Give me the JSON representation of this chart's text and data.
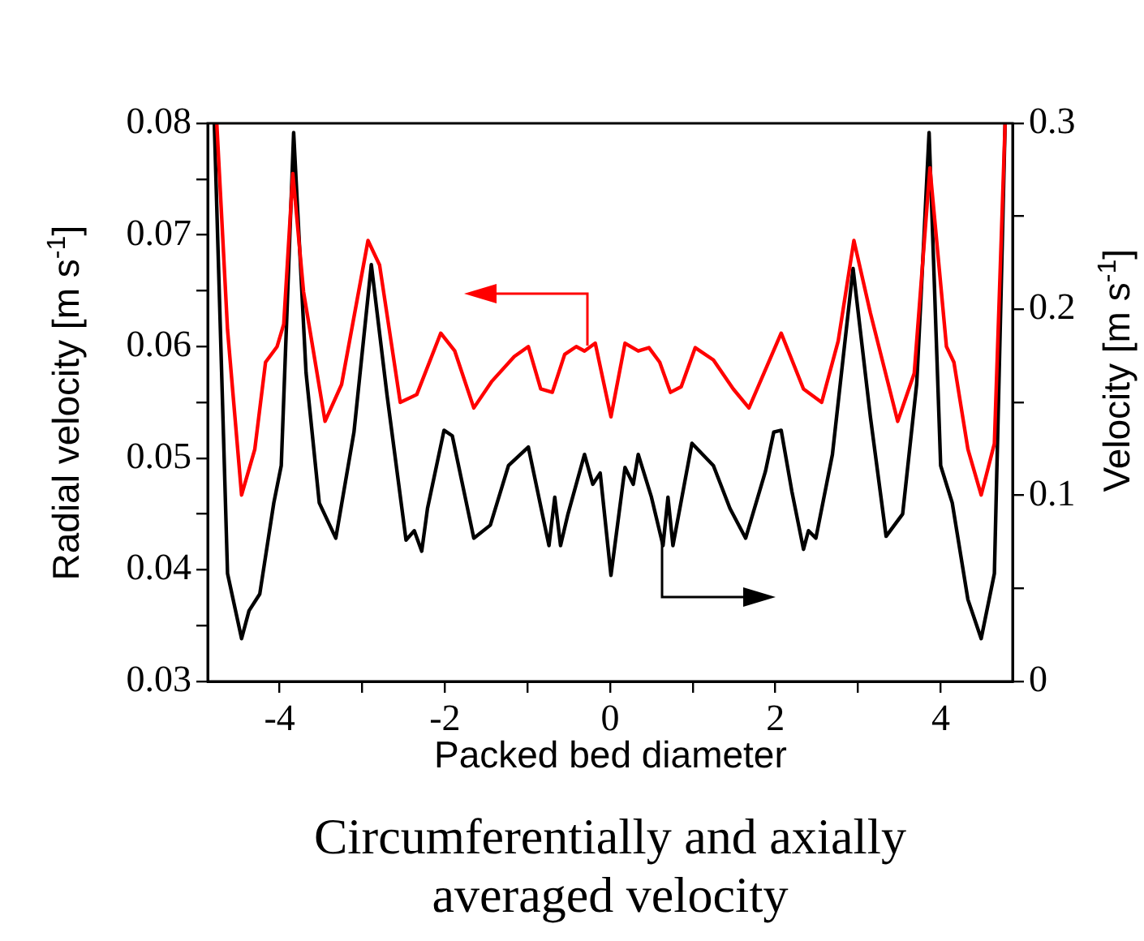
{
  "chart_data": {
    "type": "line",
    "xlabel": "Packed bed diameter",
    "ylabel": "Radial velocity [m s$^{-1}$]",
    "y2label": "Velocity [m s$^{-1}$]",
    "annotations": [
      "Circumferentially and axially averaged velocity"
    ],
    "xlim": [
      -4.87,
      4.87
    ],
    "xticks": [
      -4,
      {
        "value": -3,
        "label": null
      },
      -2,
      {
        "value": -1,
        "label": null
      },
      0,
      {
        "value": 1,
        "label": null
      },
      2,
      {
        "value": 3,
        "label": null
      },
      4
    ],
    "ylim": [
      0.03,
      0.08
    ],
    "yticks": [
      0.03,
      {
        "value": 0.035,
        "label": null
      },
      0.04,
      {
        "value": 0.045,
        "label": null
      },
      0.05,
      {
        "value": 0.055,
        "label": null
      },
      0.06,
      {
        "value": 0.065,
        "label": null
      },
      0.07,
      {
        "value": 0.075,
        "label": null
      },
      0.08
    ],
    "y2lim": [
      0,
      0.3
    ],
    "y2ticks": [
      0,
      {
        "value": 0.05,
        "label": null
      },
      0.1,
      {
        "value": 0.15,
        "label": null
      },
      0.2,
      {
        "value": 0.25,
        "label": null
      },
      0.3
    ],
    "grid": false,
    "legend": false,
    "marker": "none",
    "line_style": "solid",
    "series": [
      {
        "color": "#ff0000",
        "axis": "y",
        "x": [
          -4.76,
          -4.63,
          -4.46,
          -4.3,
          -4.17,
          -4.03,
          -3.95,
          -3.84,
          -3.71,
          -3.45,
          -3.25,
          -2.93,
          -2.79,
          -2.54,
          -2.34,
          -2.05,
          -1.88,
          -1.65,
          -1.43,
          -1.16,
          -0.99,
          -0.84,
          -0.7,
          -0.55,
          -0.41,
          -0.31,
          -0.18,
          0.01,
          0.18,
          0.34,
          0.47,
          0.6,
          0.73,
          0.86,
          1.03,
          1.25,
          1.49,
          1.68,
          2.07,
          2.34,
          2.56,
          2.76,
          2.95,
          3.15,
          3.48,
          3.68,
          3.87,
          4.07,
          4.16,
          4.33,
          4.49,
          4.65,
          4.78
        ],
        "values": [
          0.08,
          0.0615,
          0.0467,
          0.0508,
          0.0586,
          0.06,
          0.062,
          0.0755,
          0.0649,
          0.0533,
          0.0566,
          0.0695,
          0.0673,
          0.055,
          0.0557,
          0.0612,
          0.0596,
          0.0545,
          0.0569,
          0.0591,
          0.06,
          0.0562,
          0.0559,
          0.0593,
          0.06,
          0.0596,
          0.0603,
          0.0537,
          0.0603,
          0.0596,
          0.0599,
          0.0586,
          0.0559,
          0.0564,
          0.0599,
          0.0588,
          0.0562,
          0.0545,
          0.0612,
          0.0562,
          0.055,
          0.0605,
          0.0695,
          0.063,
          0.0533,
          0.0576,
          0.076,
          0.06,
          0.0586,
          0.0508,
          0.0467,
          0.0513,
          0.08
        ]
      },
      {
        "color": "#000000",
        "axis": "y2",
        "x": [
          -4.79,
          -4.63,
          -4.46,
          -4.37,
          -4.24,
          -4.07,
          -3.98,
          -3.83,
          -3.68,
          -3.52,
          -3.32,
          -3.1,
          -2.89,
          -2.7,
          -2.47,
          -2.37,
          -2.28,
          -2.21,
          -2.01,
          -1.91,
          -1.65,
          -1.45,
          -1.23,
          -0.99,
          -0.74,
          -0.67,
          -0.6,
          -0.51,
          -0.31,
          -0.21,
          -0.12,
          0.01,
          0.18,
          0.28,
          0.34,
          0.5,
          0.64,
          0.7,
          0.76,
          0.99,
          1.25,
          1.45,
          1.64,
          1.88,
          1.98,
          2.07,
          2.2,
          2.34,
          2.4,
          2.49,
          2.69,
          2.94,
          3.15,
          3.34,
          3.54,
          3.71,
          3.86,
          4.0,
          4.14,
          4.33,
          4.49,
          4.65,
          4.78
        ],
        "values": [
          0.3,
          0.058,
          0.023,
          0.038,
          0.047,
          0.096,
          0.116,
          0.295,
          0.166,
          0.096,
          0.077,
          0.134,
          0.224,
          0.154,
          0.076,
          0.081,
          0.07,
          0.093,
          0.135,
          0.132,
          0.077,
          0.084,
          0.116,
          0.126,
          0.073,
          0.099,
          0.073,
          0.09,
          0.122,
          0.106,
          0.112,
          0.057,
          0.115,
          0.106,
          0.122,
          0.099,
          0.073,
          0.099,
          0.073,
          0.128,
          0.116,
          0.093,
          0.077,
          0.113,
          0.134,
          0.135,
          0.102,
          0.071,
          0.081,
          0.077,
          0.122,
          0.222,
          0.142,
          0.078,
          0.09,
          0.16,
          0.295,
          0.116,
          0.096,
          0.044,
          0.023,
          0.058,
          0.3
        ]
      }
    ]
  }
}
